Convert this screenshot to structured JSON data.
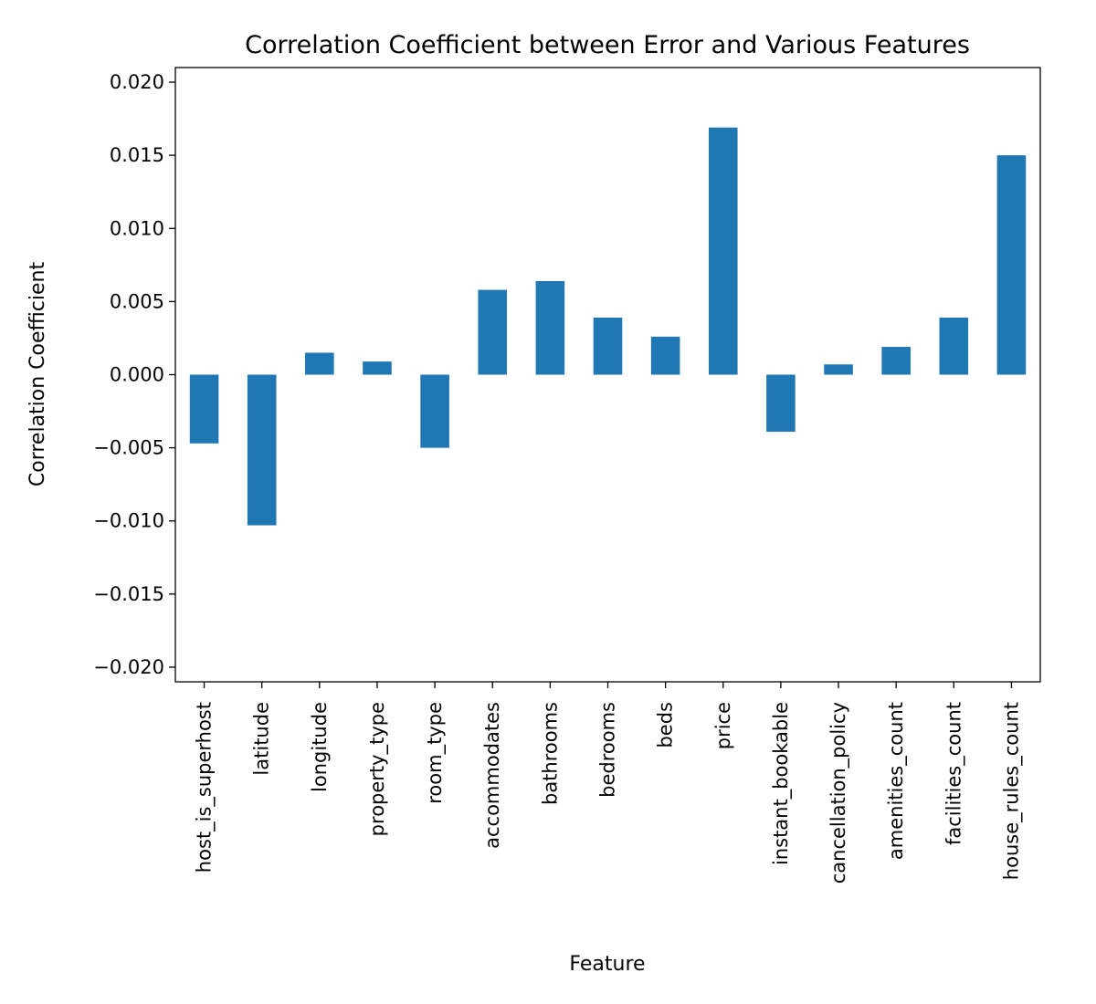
{
  "chart_data": {
    "type": "bar",
    "title": "Correlation Coefficient between Error and Various Features",
    "xlabel": "Feature",
    "ylabel": "Correlation Coefficient",
    "ylim": [
      -0.021,
      0.021
    ],
    "yticks": [
      0.02,
      0.015,
      0.01,
      0.005,
      0.0,
      -0.005,
      -0.01,
      -0.015,
      -0.02
    ],
    "ytick_labels": [
      "0.020",
      "0.015",
      "0.010",
      "0.005",
      "0.000",
      "−0.005",
      "−0.010",
      "−0.015",
      "−0.020"
    ],
    "grid": false,
    "categories": [
      "host_is_superhost",
      "latitude",
      "longitude",
      "property_type",
      "room_type",
      "accommodates",
      "bathrooms",
      "bedrooms",
      "beds",
      "price",
      "instant_bookable",
      "cancellation_policy",
      "amenities_count",
      "facilities_count",
      "house_rules_count"
    ],
    "values": [
      -0.0047,
      -0.0103,
      0.0015,
      0.0009,
      -0.005,
      0.0058,
      0.0064,
      0.0039,
      0.0026,
      0.0169,
      -0.0039,
      0.0007,
      0.0019,
      0.0039,
      0.015
    ],
    "bar_color": "#1f77b4"
  }
}
